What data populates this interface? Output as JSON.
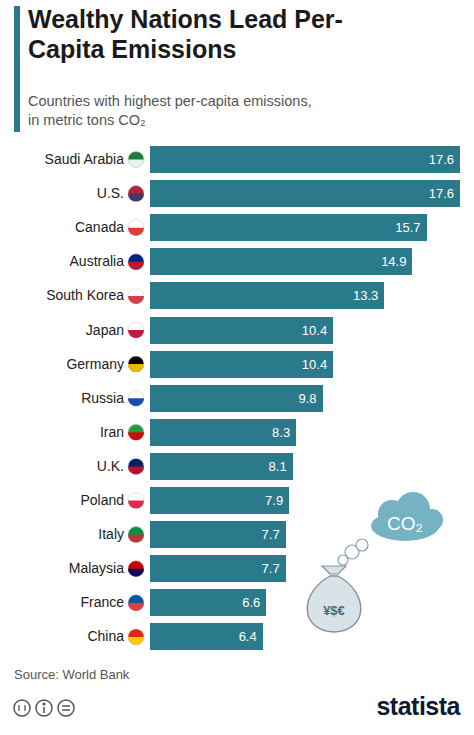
{
  "chart_data": {
    "type": "bar",
    "orientation": "horizontal",
    "title": "Wealthy Nations Lead Per-Capita Emissions",
    "subtitle": "Countries with highest per-capita emissions, in metric tons CO₂",
    "source": "Source: World Bank",
    "categories": [
      "Saudi Arabia",
      "U.S.",
      "Canada",
      "Australia",
      "South Korea",
      "Japan",
      "Germany",
      "Russia",
      "Iran",
      "U.K.",
      "Poland",
      "Italy",
      "Malaysia",
      "France",
      "China"
    ],
    "values": [
      17.6,
      17.6,
      15.7,
      14.9,
      13.3,
      10.4,
      10.4,
      9.8,
      8.3,
      8.1,
      7.9,
      7.7,
      7.7,
      6.6,
      6.4
    ],
    "color": "#2b7a8b",
    "xlim": [
      0,
      17.6
    ],
    "data_labels": true,
    "tick_labels": "y",
    "annotations": [
      "CO₂",
      "¥$€",
      "statista"
    ]
  }
}
